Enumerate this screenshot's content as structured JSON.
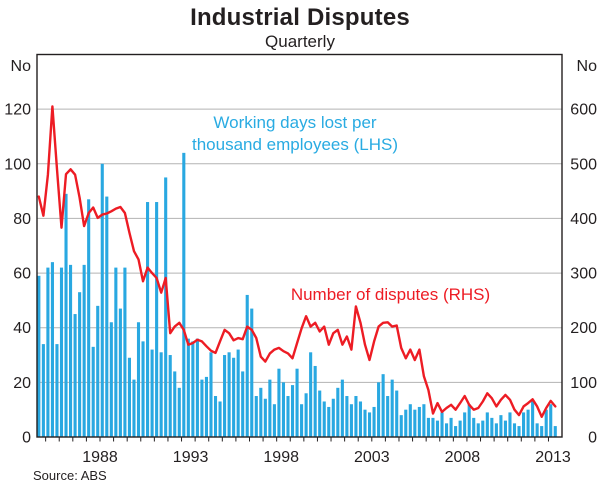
{
  "header": {
    "title": "Industrial Disputes",
    "subtitle": "Quarterly"
  },
  "axes": {
    "left_unit": "No",
    "right_unit": "No",
    "left_ticks": [
      0,
      20,
      40,
      60,
      80,
      100,
      120
    ],
    "right_ticks": [
      0,
      100,
      200,
      300,
      400,
      500,
      600
    ],
    "x_ticks": [
      1988,
      1993,
      1998,
      2003,
      2008,
      2013
    ]
  },
  "labels": {
    "bars_line1": "Working days lost per",
    "bars_line2": "thousand employees (LHS)",
    "line": "Number of disputes (RHS)"
  },
  "source": "Source: ABS",
  "colors": {
    "bars": "#29A8E1",
    "bars_label": "#29ABE2",
    "line": "#ED1C24",
    "grid": "#B3B3B3",
    "frame": "#231F20"
  },
  "chart_data": {
    "type": "bar",
    "subtype": "bar+line combo, quarterly time series",
    "title": "Industrial Disputes",
    "subtitle": "Quarterly",
    "x_start": 1985.125,
    "x_step": 0.25,
    "x_axis_range": [
      1985.0,
      2014.0
    ],
    "x_tick_labels": [
      1988,
      1993,
      1998,
      2003,
      2008,
      2013
    ],
    "ylim_lhs": [
      0,
      140
    ],
    "ylim_rhs": [
      0,
      700
    ],
    "lhs_labeled_to": 120,
    "rhs_labeled_to": 600,
    "grid": "horizontal gridlines at labeled ticks",
    "legend_position": "inline text annotations",
    "series": [
      {
        "name": "Working days lost per thousand employees",
        "axis": "LHS",
        "render": "bar",
        "unit": "No",
        "values": [
          59,
          34,
          62,
          64,
          34,
          62,
          89,
          63,
          45,
          53,
          63,
          87,
          33,
          48,
          100,
          88,
          42,
          62,
          47,
          62,
          29,
          21,
          42,
          35,
          86,
          32,
          86,
          31,
          95,
          30,
          24,
          18,
          104,
          36,
          35,
          36,
          21,
          22,
          31,
          15,
          13,
          30,
          31,
          29,
          32,
          24,
          52,
          47,
          15,
          18,
          14,
          21,
          12,
          25,
          20,
          15,
          19,
          25,
          12,
          16,
          31,
          26,
          17,
          13,
          11,
          14,
          18,
          21,
          15,
          12,
          15,
          13,
          10,
          9,
          11,
          20,
          23,
          15,
          21,
          17,
          8,
          10,
          12,
          10,
          11,
          12,
          7,
          7,
          6,
          9,
          5,
          7,
          4,
          6,
          9,
          12,
          7,
          5,
          6,
          9,
          7,
          5,
          8,
          6,
          9,
          5,
          4,
          9,
          10,
          13,
          5,
          4,
          10,
          12,
          4
        ]
      },
      {
        "name": "Number of disputes",
        "axis": "RHS",
        "render": "line",
        "unit": "No",
        "values": [
          440,
          405,
          480,
          605,
          490,
          383,
          481,
          490,
          480,
          438,
          386,
          410,
          420,
          401,
          407,
          409,
          413,
          418,
          421,
          410,
          374,
          340,
          325,
          285,
          310,
          300,
          291,
          264,
          291,
          190,
          202,
          209,
          196,
          169,
          172,
          178,
          175,
          166,
          158,
          154,
          175,
          196,
          190,
          177,
          181,
          179,
          202,
          196,
          181,
          147,
          138,
          153,
          160,
          163,
          157,
          153,
          144,
          172,
          199,
          221,
          202,
          209,
          193,
          202,
          169,
          190,
          196,
          169,
          184,
          160,
          239,
          209,
          169,
          141,
          175,
          202,
          209,
          210,
          202,
          204,
          163,
          144,
          160,
          141,
          160,
          111,
          86,
          43,
          62,
          46,
          53,
          59,
          50,
          62,
          75,
          59,
          50,
          53,
          65,
          80,
          71,
          56,
          68,
          77,
          68,
          50,
          40,
          56,
          62,
          69,
          56,
          37,
          53,
          66,
          56
        ]
      }
    ]
  }
}
